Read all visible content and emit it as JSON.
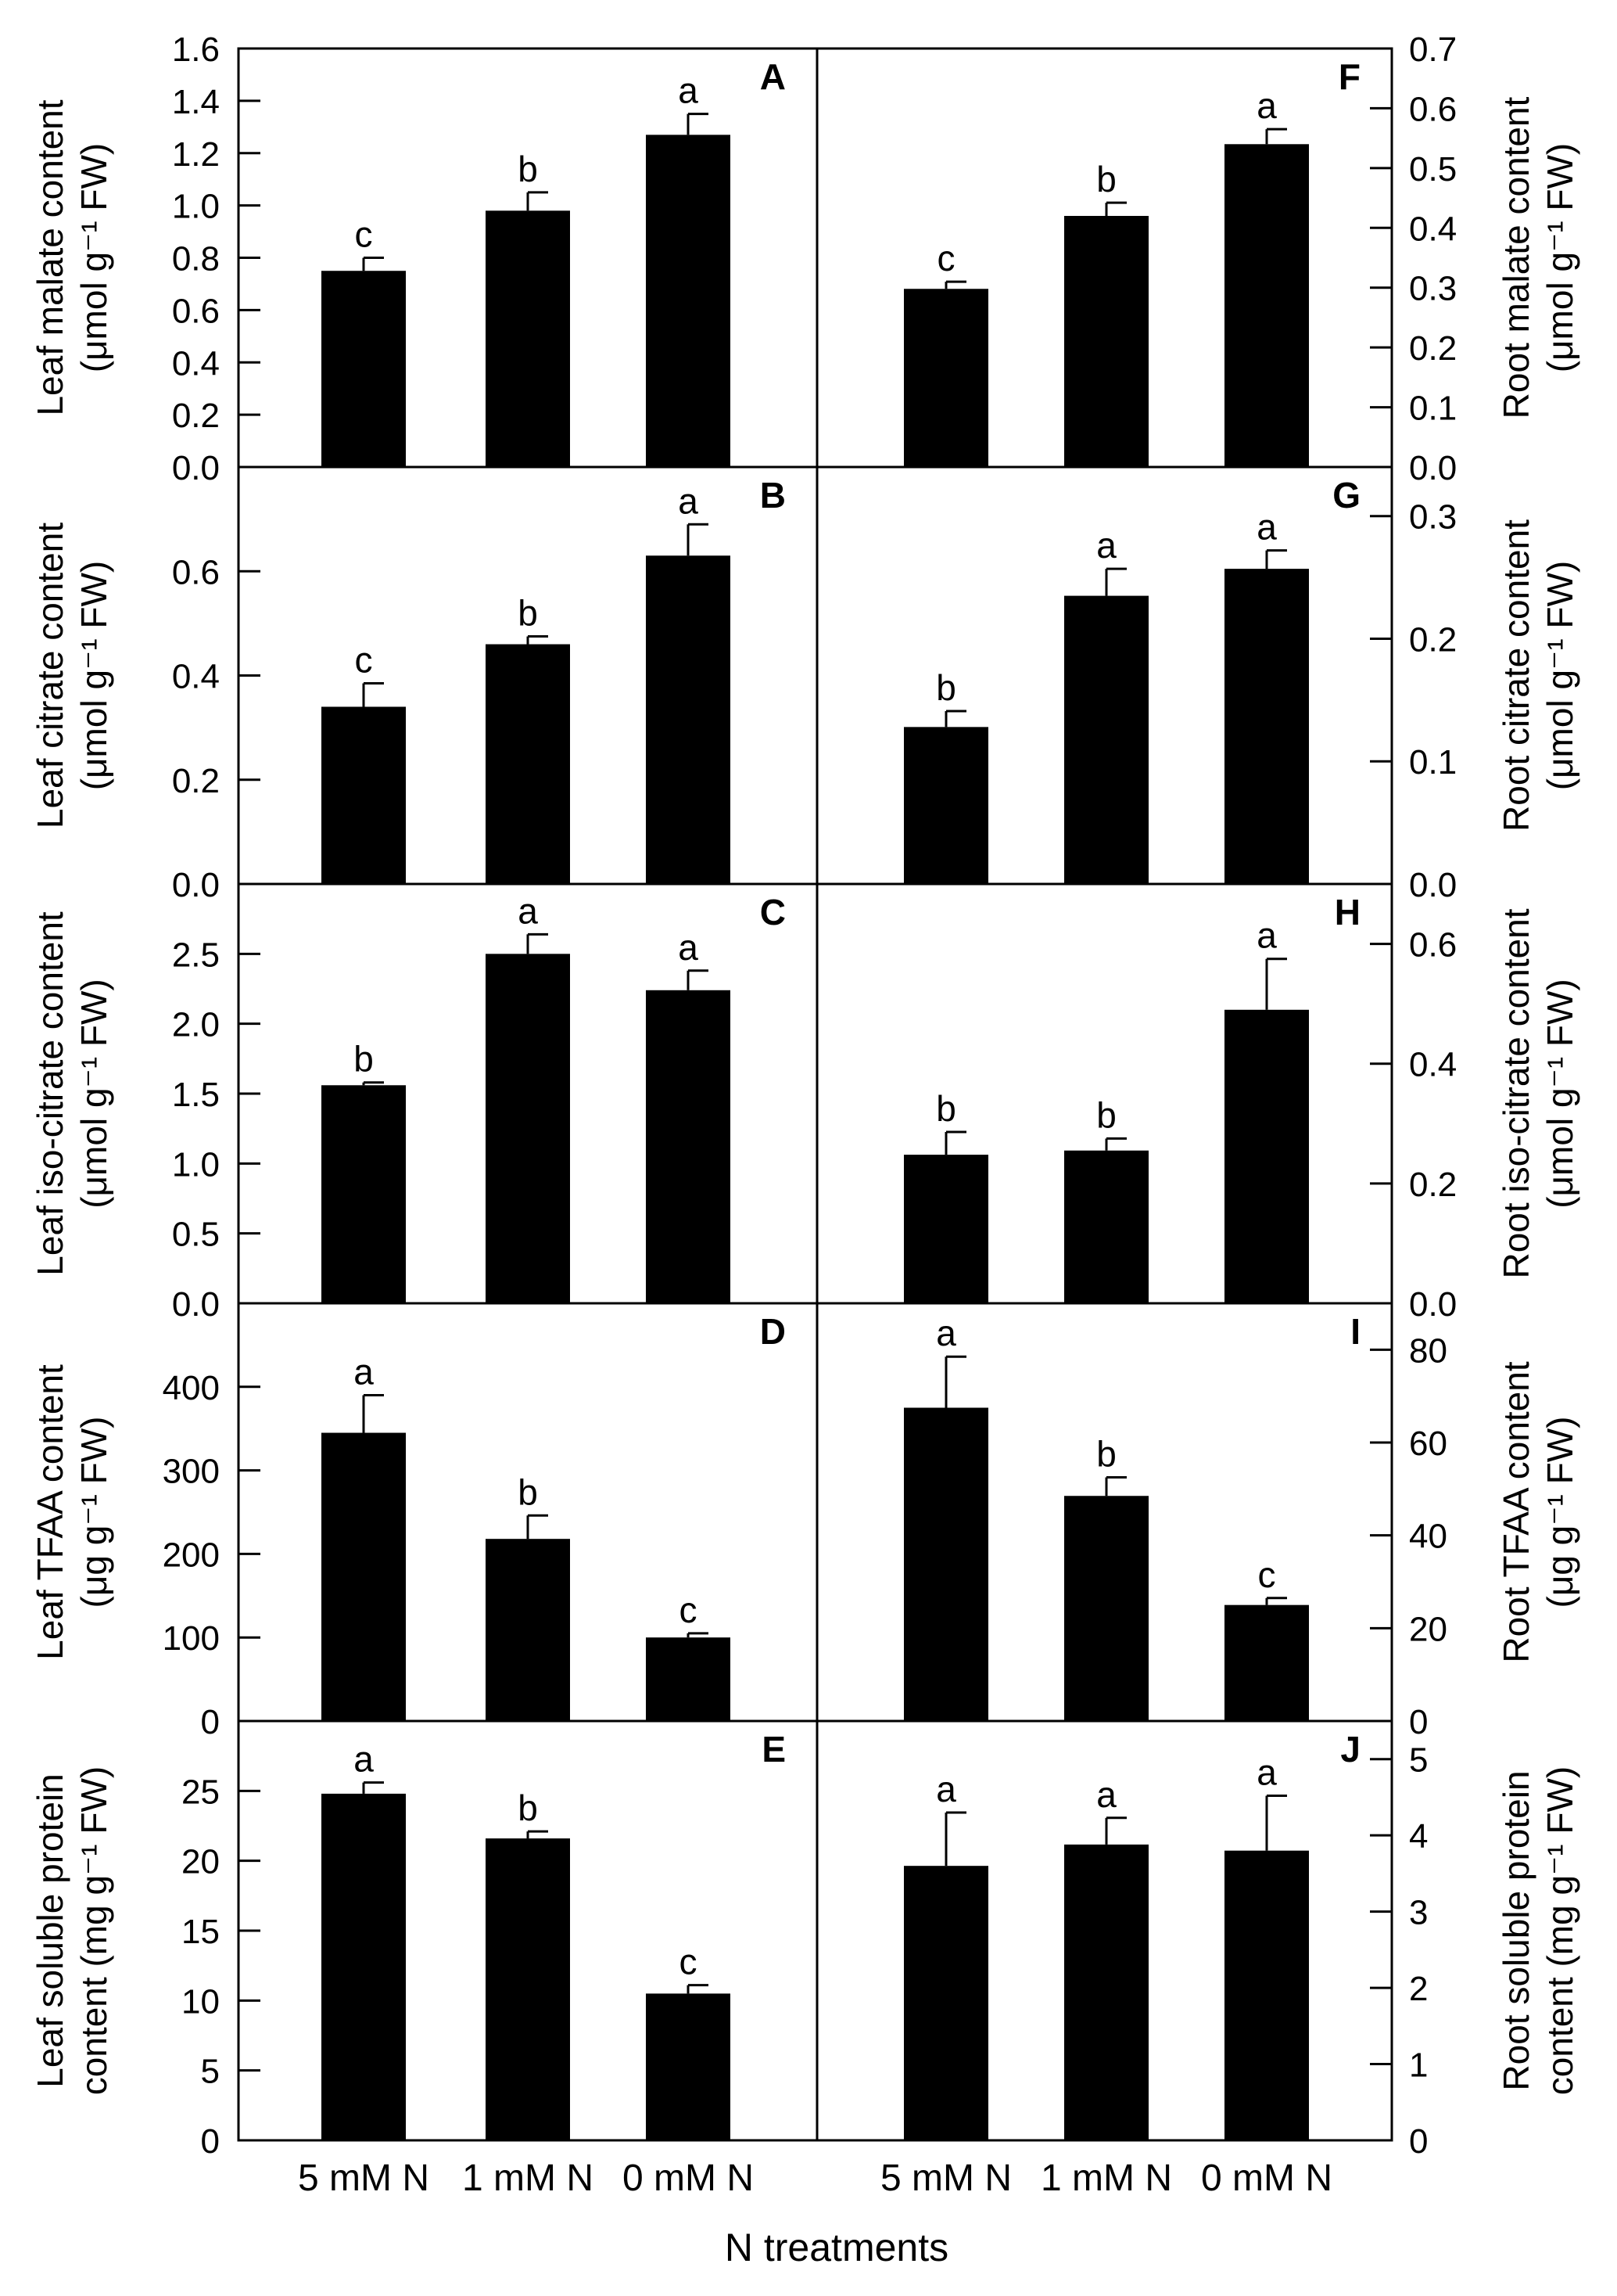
{
  "figure": {
    "x_axis_title": "N treatments",
    "categories": [
      "5 mM N",
      "1 mM N",
      "0 mM N"
    ],
    "bar_color": "#000000"
  },
  "chart_data": [
    {
      "panel": "A",
      "type": "bar",
      "side": "left",
      "ylabel_lines": [
        "Leaf malate content",
        "(μmol g⁻¹ FW)"
      ],
      "ylim": [
        0,
        1.6
      ],
      "ticks": [
        "0.0",
        "0.2",
        "0.4",
        "0.6",
        "0.8",
        "1.0",
        "1.2",
        "1.4",
        "1.6"
      ],
      "categories": [
        "5 mM N",
        "1 mM N",
        "0 mM N"
      ],
      "values": [
        0.75,
        0.98,
        1.27
      ],
      "errors": [
        0.05,
        0.07,
        0.08
      ],
      "letters": [
        "c",
        "b",
        "a"
      ]
    },
    {
      "panel": "B",
      "type": "bar",
      "side": "left",
      "ylabel_lines": [
        "Leaf citrate content",
        "(μmol g⁻¹ FW)"
      ],
      "ylim": [
        0,
        0.8
      ],
      "ticks": [
        "0.0",
        "0.2",
        "0.4",
        "0.6"
      ],
      "categories": [
        "5 mM N",
        "1 mM N",
        "0 mM N"
      ],
      "values": [
        0.34,
        0.46,
        0.63
      ],
      "errors": [
        0.045,
        0.015,
        0.06
      ],
      "letters": [
        "c",
        "b",
        "a"
      ]
    },
    {
      "panel": "C",
      "type": "bar",
      "side": "left",
      "ylabel_lines": [
        "Leaf iso-citrate content",
        "(μmol g⁻¹ FW)"
      ],
      "ylim": [
        0,
        3.0
      ],
      "ticks": [
        "0.0",
        "0.5",
        "1.0",
        "1.5",
        "2.0",
        "2.5"
      ],
      "categories": [
        "5 mM N",
        "1 mM N",
        "0 mM N"
      ],
      "values": [
        1.56,
        2.5,
        2.24
      ],
      "errors": [
        0.02,
        0.14,
        0.14
      ],
      "letters": [
        "b",
        "a",
        "a"
      ]
    },
    {
      "panel": "D",
      "type": "bar",
      "side": "left",
      "ylabel_lines": [
        "Leaf TFAA content",
        "(μg g⁻¹ FW)"
      ],
      "ylim": [
        0,
        500
      ],
      "ticks": [
        "0",
        "100",
        "200",
        "300",
        "400"
      ],
      "categories": [
        "5 mM N",
        "1 mM N",
        "0 mM N"
      ],
      "values": [
        345,
        218,
        100
      ],
      "errors": [
        45,
        28,
        5
      ],
      "letters": [
        "a",
        "b",
        "c"
      ]
    },
    {
      "panel": "E",
      "type": "bar",
      "side": "left",
      "ylabel_lines": [
        "Leaf soluble protein",
        "content  (mg g⁻¹ FW)"
      ],
      "ylim": [
        0,
        30
      ],
      "ticks": [
        "0",
        "5",
        "10",
        "15",
        "20",
        "25"
      ],
      "categories": [
        "5 mM N",
        "1 mM N",
        "0 mM N"
      ],
      "values": [
        24.8,
        21.6,
        10.5
      ],
      "errors": [
        0.8,
        0.5,
        0.6
      ],
      "letters": [
        "a",
        "b",
        "c"
      ]
    },
    {
      "panel": "F",
      "type": "bar",
      "side": "right",
      "ylabel_lines": [
        "Root malate content",
        "(μmol g⁻¹ FW)"
      ],
      "ylim": [
        0,
        0.7
      ],
      "ticks": [
        "0.0",
        "0.1",
        "0.2",
        "0.3",
        "0.4",
        "0.5",
        "0.6",
        "0.7"
      ],
      "categories": [
        "5 mM N",
        "1 mM N",
        "0 mM N"
      ],
      "values": [
        0.298,
        0.42,
        0.54
      ],
      "errors": [
        0.012,
        0.022,
        0.025
      ],
      "letters": [
        "c",
        "b",
        "a"
      ]
    },
    {
      "panel": "G",
      "type": "bar",
      "side": "right",
      "ylabel_lines": [
        "Root citrate content",
        "(μmol g⁻¹ FW)"
      ],
      "ylim": [
        0,
        0.34
      ],
      "ticks": [
        "0.0",
        "0.1",
        "0.2",
        "0.3"
      ],
      "categories": [
        "5 mM N",
        "1 mM N",
        "0 mM N"
      ],
      "values": [
        0.128,
        0.235,
        0.257
      ],
      "errors": [
        0.013,
        0.022,
        0.015
      ],
      "letters": [
        "b",
        "a",
        "a"
      ]
    },
    {
      "panel": "H",
      "type": "bar",
      "side": "right",
      "ylabel_lines": [
        "Root iso-citrate content",
        "(μmol g⁻¹ FW)"
      ],
      "ylim": [
        0,
        0.7
      ],
      "ticks": [
        "0.0",
        "0.2",
        "0.4",
        "0.6"
      ],
      "categories": [
        "5 mM N",
        "1 mM N",
        "0 mM N"
      ],
      "values": [
        0.248,
        0.255,
        0.49
      ],
      "errors": [
        0.038,
        0.02,
        0.085
      ],
      "letters": [
        "b",
        "b",
        "a"
      ]
    },
    {
      "panel": "I",
      "type": "bar",
      "side": "right",
      "ylabel_lines": [
        "Root TFAA content",
        "(μg g⁻¹ FW)"
      ],
      "ylim": [
        0,
        90
      ],
      "ticks": [
        "0",
        "20",
        "40",
        "60",
        "80"
      ],
      "categories": [
        "5 mM N",
        "1 mM N",
        "0 mM N"
      ],
      "values": [
        67.5,
        48.5,
        25
      ],
      "errors": [
        11,
        4,
        1.5
      ],
      "letters": [
        "a",
        "b",
        "c"
      ]
    },
    {
      "panel": "J",
      "type": "bar",
      "side": "right",
      "ylabel_lines": [
        "Root soluble protein",
        "content  (mg g⁻¹ FW)"
      ],
      "ylim": [
        0,
        5.5
      ],
      "ticks": [
        "0",
        "1",
        "2",
        "3",
        "4",
        "5"
      ],
      "categories": [
        "5 mM N",
        "1 mM N",
        "0 mM N"
      ],
      "values": [
        3.6,
        3.88,
        3.8
      ],
      "errors": [
        0.7,
        0.35,
        0.72
      ],
      "letters": [
        "a",
        "a",
        "a"
      ]
    }
  ]
}
